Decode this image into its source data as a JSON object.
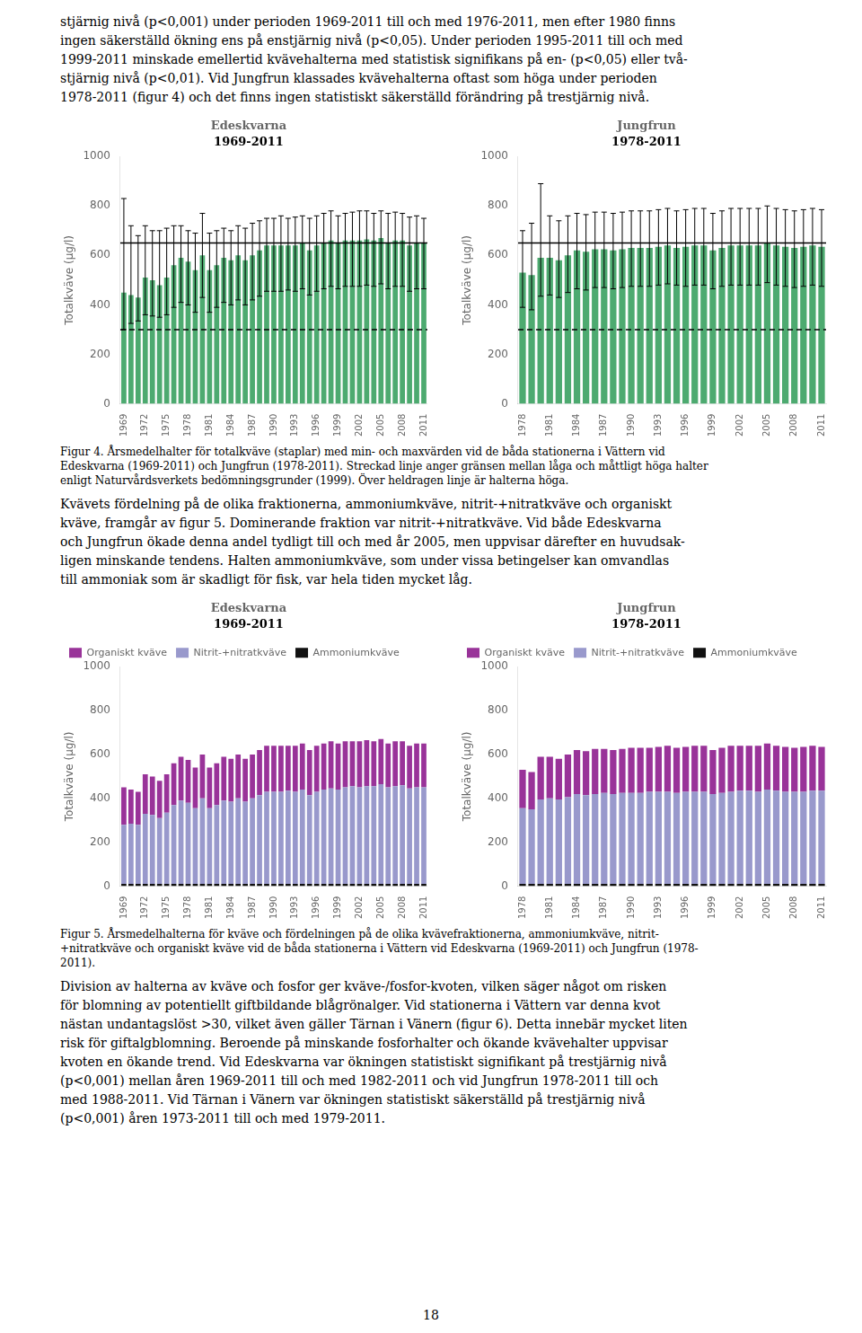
{
  "text_top": [
    "stjärnig nivå (p<0,001) under perioden 1969-2011 till och med 1976-2011, men efter 1980 finns",
    "ingen säkerställd ökning ens på enstjärnig nivå (p<0,05). Under perioden 1995-2011 till och med",
    "1999-2011 minskade emellertid kvävehalterna med statistisk signifikans på en- (p<0,05) eller två-",
    "stjärnig nivå (p<0,01). Vid Jungfrun klassades kvävehalterna oftast som höga under perioden",
    "1978-2011 (figur 4) och det finns ingen statistiskt säkerställd förändring på trestjärnig nivå."
  ],
  "caption_fig4": [
    "Figur 4. Årsmedelhalter för totalkväve (staplar) med min- och maxvärden vid de båda stationerna i Vättern vid",
    "Edeskvarna (1969-2011) och Jungfrun (1978-2011). Streckad linje anger gränsen mellan låga och måttligt höga halter",
    "enligt Naturvårdsverkets bedömningsgrunder (1999). Över heldragen linje är halterna höga."
  ],
  "text_mid": [
    "Kvävets fördelning på de olika fraktionerna, ammoniumkväve, nitrit-+nitratkväve och organiskt",
    "kväve, framgår av figur 5. Dominerande fraktion var nitrit-+nitratkväve. Vid både Edeskvarna",
    "och Jungfrun ökade denna andel tydligt till och med år 2005, men uppvisar därefter en huvudsak-",
    "ligen minskande tendens. Halten ammoniumkväve, som under vissa betingelser kan omvandlas",
    "till ammoniak som är skadligt för fisk, var hela tiden mycket låg."
  ],
  "caption_fig5": [
    "Figur 5. Årsmedelhalterna för kväve och fördelningen på de olika kvävefraktionerna, ammoniumkväve, nitrit-",
    "+nitratkväve och organiskt kväve vid de båda stationerna i Vättern vid Edeskvarna (1969-2011) och Jungfrun (1978-",
    "2011)."
  ],
  "text_bottom": [
    "Division av halterna av kväve och fosfor ger kväve-/fosfor-kvoten, vilken säger något om risken",
    "för blomning av potentiellt giftbildande blågrönalger. Vid stationerna i Vättern var denna kvot",
    "nästan undantagslöst >30, vilket även gäller Tärnan i Vänern (figur 6). Detta innebär mycket liten",
    "risk för giftalgblomning. Beroende på minskande fosforhalter och ökande kvävehalter uppvisar",
    "kvoten en ökande trend. Vid Edeskvarna var ökningen statistiskt signifikant på trestjärnig nivå",
    "(p<0,001) mellan åren 1969-2011 till och med 1982-2011 och vid Jungfrun 1978-2011 till och",
    "med 1988-2011. Vid Tärnan i Vänern var ökningen statistiskt säkerställd på trestjärnig nivå",
    "(p<0,001) åren 1973-2011 till och med 1979-2011."
  ],
  "page_number": "18",
  "chart_data": [
    {
      "type": "bar",
      "title": "Edeskvarna",
      "subtitle": "1969-2011",
      "ylabel": "Totalkväve (μg/l)",
      "categories": [
        "1969",
        null,
        null,
        "1972",
        null,
        null,
        "1975",
        null,
        null,
        "1978",
        null,
        null,
        "1981",
        null,
        null,
        "1984",
        null,
        null,
        "1987",
        null,
        null,
        "1990",
        null,
        null,
        "1993",
        null,
        null,
        "1996",
        null,
        null,
        "1999",
        null,
        null,
        "2002",
        null,
        null,
        "2005",
        null,
        null,
        "2008",
        null,
        null,
        "2011"
      ],
      "values": [
        450,
        440,
        430,
        510,
        500,
        480,
        510,
        560,
        590,
        575,
        540,
        600,
        540,
        560,
        590,
        580,
        600,
        580,
        600,
        620,
        640,
        640,
        640,
        640,
        640,
        650,
        620,
        640,
        650,
        660,
        650,
        660,
        660,
        660,
        665,
        660,
        670,
        650,
        660,
        660,
        640,
        650,
        650
      ],
      "min": [
        300,
        325,
        335,
        360,
        355,
        350,
        360,
        390,
        410,
        400,
        370,
        430,
        370,
        390,
        410,
        400,
        420,
        400,
        420,
        435,
        455,
        455,
        455,
        460,
        455,
        465,
        440,
        455,
        465,
        475,
        465,
        475,
        475,
        475,
        480,
        475,
        485,
        465,
        475,
        475,
        455,
        465,
        465
      ],
      "max": [
        830,
        720,
        680,
        720,
        700,
        700,
        710,
        720,
        720,
        700,
        690,
        770,
        690,
        700,
        710,
        700,
        720,
        710,
        730,
        740,
        750,
        750,
        760,
        750,
        755,
        760,
        750,
        760,
        770,
        780,
        760,
        770,
        775,
        780,
        780,
        770,
        780,
        770,
        775,
        770,
        755,
        760,
        750
      ],
      "color": "#4daa70",
      "hlines": [
        {
          "value": 650,
          "line_style": "solid"
        },
        {
          "value": 300,
          "line_style": "dashed"
        }
      ],
      "ylim": [
        0,
        1000
      ],
      "yticks": [
        0,
        200,
        400,
        600,
        800,
        1000
      ],
      "grid": false
    },
    {
      "type": "bar",
      "title": "Jungfrun",
      "subtitle": "1978-2011",
      "ylabel": "Totalkväve (μg/l)",
      "categories": [
        "1978",
        null,
        null,
        "1981",
        null,
        null,
        "1984",
        null,
        null,
        "1987",
        null,
        null,
        "1990",
        null,
        null,
        "1993",
        null,
        null,
        "1996",
        null,
        null,
        "1999",
        null,
        null,
        "2002",
        null,
        null,
        "2005",
        null,
        null,
        "2008",
        null,
        null,
        "2011"
      ],
      "values": [
        530,
        520,
        590,
        590,
        580,
        600,
        620,
        615,
        625,
        625,
        620,
        625,
        630,
        630,
        630,
        635,
        640,
        630,
        635,
        640,
        640,
        620,
        630,
        640,
        640,
        640,
        640,
        650,
        640,
        635,
        630,
        635,
        640,
        635
      ],
      "min": [
        390,
        380,
        435,
        440,
        430,
        450,
        465,
        460,
        470,
        470,
        465,
        470,
        475,
        475,
        475,
        480,
        485,
        480,
        475,
        480,
        480,
        465,
        475,
        480,
        480,
        480,
        480,
        490,
        480,
        475,
        470,
        475,
        480,
        475
      ],
      "max": [
        700,
        730,
        890,
        760,
        740,
        760,
        770,
        765,
        775,
        775,
        770,
        775,
        780,
        780,
        780,
        785,
        790,
        780,
        785,
        790,
        790,
        770,
        780,
        790,
        790,
        790,
        790,
        800,
        790,
        785,
        780,
        785,
        790,
        785
      ],
      "color": "#4daa70",
      "hlines": [
        {
          "value": 650,
          "line_style": "solid"
        },
        {
          "value": 300,
          "line_style": "dashed"
        }
      ],
      "ylim": [
        0,
        1000
      ],
      "yticks": [
        0,
        200,
        400,
        600,
        800,
        1000
      ],
      "grid": false
    },
    {
      "type": "bar",
      "stacked": true,
      "title": "Edeskvarna",
      "subtitle": "1969-2011",
      "ylabel": "Totalkväve (μg/l)",
      "categories": [
        "1969",
        null,
        null,
        "1972",
        null,
        null,
        "1975",
        null,
        null,
        "1978",
        null,
        null,
        "1981",
        null,
        null,
        "1984",
        null,
        null,
        "1987",
        null,
        null,
        "1990",
        null,
        null,
        "1993",
        null,
        null,
        "1996",
        null,
        null,
        "1999",
        null,
        null,
        "2002",
        null,
        null,
        "2005",
        null,
        null,
        "2008",
        null,
        null,
        "2011"
      ],
      "series": [
        {
          "name": "Ammoniumkväve",
          "color": "#111111",
          "values": [
            10,
            10,
            10,
            10,
            10,
            10,
            10,
            10,
            10,
            10,
            10,
            10,
            10,
            10,
            10,
            10,
            10,
            10,
            10,
            10,
            10,
            10,
            10,
            10,
            10,
            10,
            10,
            10,
            10,
            10,
            10,
            10,
            10,
            10,
            10,
            10,
            10,
            10,
            10,
            10,
            10,
            10,
            10
          ]
        },
        {
          "name": "Nitrit-+nitratkväve",
          "color": "#9999cc",
          "values": [
            270,
            275,
            270,
            320,
            315,
            300,
            325,
            360,
            380,
            370,
            345,
            390,
            345,
            360,
            380,
            375,
            390,
            375,
            390,
            405,
            420,
            420,
            420,
            425,
            420,
            430,
            405,
            420,
            430,
            435,
            430,
            440,
            445,
            440,
            445,
            445,
            455,
            440,
            445,
            450,
            435,
            440,
            440
          ]
        },
        {
          "name": "Organiskt kväve",
          "color": "#993399",
          "values": [
            170,
            155,
            150,
            180,
            175,
            170,
            175,
            190,
            200,
            195,
            185,
            200,
            185,
            190,
            200,
            195,
            200,
            195,
            200,
            205,
            210,
            210,
            210,
            205,
            210,
            210,
            205,
            210,
            210,
            215,
            210,
            210,
            205,
            210,
            210,
            205,
            205,
            200,
            205,
            200,
            195,
            200,
            200
          ]
        }
      ],
      "legend": "upper left",
      "ylim": [
        0,
        1000
      ],
      "yticks": [
        0,
        200,
        400,
        600,
        800,
        1000
      ],
      "grid": false
    },
    {
      "type": "bar",
      "stacked": true,
      "title": "Jungfrun",
      "subtitle": "1978-2011",
      "ylabel": "Totalkväve (μg/l)",
      "categories": [
        "1978",
        null,
        null,
        "1981",
        null,
        null,
        "1984",
        null,
        null,
        "1987",
        null,
        null,
        "1990",
        null,
        null,
        "1993",
        null,
        null,
        "1996",
        null,
        null,
        "1999",
        null,
        null,
        "2002",
        null,
        null,
        "2005",
        null,
        null,
        "2008",
        null,
        null,
        "2011"
      ],
      "series": [
        {
          "name": "Ammoniumkväve",
          "color": "#111111",
          "values": [
            10,
            10,
            10,
            10,
            10,
            10,
            10,
            10,
            10,
            10,
            10,
            10,
            10,
            10,
            10,
            10,
            10,
            10,
            10,
            10,
            10,
            10,
            10,
            10,
            10,
            10,
            10,
            10,
            10,
            10,
            10,
            10,
            10,
            10
          ]
        },
        {
          "name": "Nitrit-+nitratkväve",
          "color": "#9999cc",
          "values": [
            345,
            340,
            385,
            390,
            385,
            395,
            410,
            405,
            410,
            415,
            410,
            415,
            415,
            415,
            420,
            420,
            420,
            415,
            420,
            420,
            420,
            410,
            415,
            420,
            425,
            425,
            420,
            430,
            425,
            420,
            420,
            420,
            425,
            425
          ]
        },
        {
          "name": "Organiskt kväve",
          "color": "#993399",
          "values": [
            175,
            170,
            195,
            190,
            185,
            195,
            200,
            200,
            205,
            200,
            200,
            200,
            205,
            205,
            200,
            205,
            210,
            205,
            205,
            210,
            210,
            200,
            205,
            210,
            205,
            205,
            210,
            210,
            205,
            205,
            200,
            205,
            205,
            200
          ]
        }
      ],
      "legend": "upper left",
      "ylim": [
        0,
        1000
      ],
      "yticks": [
        0,
        200,
        400,
        600,
        800,
        1000
      ],
      "grid": false
    }
  ]
}
